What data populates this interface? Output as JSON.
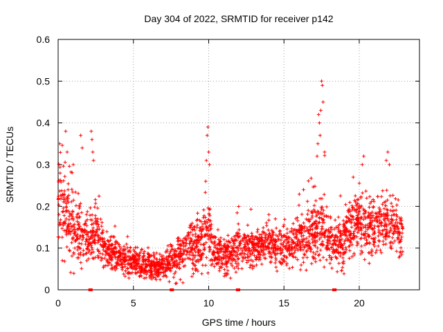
{
  "chart_data": {
    "type": "scatter",
    "title": "Day 304 of 2022, SRMTID for receiver p142",
    "xlabel": "GPS time / hours",
    "ylabel": "SRMTID / TECUs",
    "xlim": [
      0,
      24
    ],
    "ylim": [
      0,
      0.6
    ],
    "x_ticks": [
      0,
      5,
      10,
      15,
      20
    ],
    "y_ticks": [
      0,
      0.1,
      0.2,
      0.3,
      0.4,
      0.5,
      0.6
    ],
    "x_tick_labels": [
      "0",
      "5",
      "10",
      "15",
      "20"
    ],
    "y_tick_labels": [
      "0",
      "0.1",
      "0.2",
      "0.3",
      "0.4",
      "0.5",
      "0.6"
    ],
    "grid": true,
    "marker": "+",
    "color": "#ff0000",
    "profile": {
      "x": [
        0,
        0.3,
        0.7,
        1.0,
        1.5,
        2.0,
        2.5,
        3.0,
        3.5,
        4.0,
        4.5,
        5.0,
        5.5,
        6.0,
        6.5,
        7.0,
        7.5,
        8.0,
        8.5,
        9.0,
        9.5,
        10.0,
        10.5,
        11.0,
        11.5,
        12.0,
        12.5,
        13.0,
        13.5,
        14.0,
        14.5,
        15.0,
        15.5,
        16.0,
        16.5,
        17.0,
        17.5,
        18.0,
        18.5,
        19.0,
        19.5,
        20.0,
        20.5,
        21.0,
        21.5,
        22.0,
        22.5,
        22.9
      ],
      "y": [
        0.22,
        0.2,
        0.17,
        0.15,
        0.13,
        0.12,
        0.14,
        0.1,
        0.09,
        0.08,
        0.07,
        0.07,
        0.06,
        0.06,
        0.055,
        0.06,
        0.065,
        0.08,
        0.1,
        0.1,
        0.11,
        0.13,
        0.09,
        0.08,
        0.085,
        0.1,
        0.1,
        0.1,
        0.11,
        0.12,
        0.1,
        0.09,
        0.11,
        0.12,
        0.13,
        0.14,
        0.15,
        0.12,
        0.1,
        0.12,
        0.15,
        0.17,
        0.15,
        0.14,
        0.16,
        0.17,
        0.15,
        0.12
      ],
      "spread": [
        0.09,
        0.08,
        0.07,
        0.06,
        0.05,
        0.05,
        0.05,
        0.035,
        0.03,
        0.025,
        0.025,
        0.025,
        0.025,
        0.025,
        0.02,
        0.025,
        0.03,
        0.04,
        0.05,
        0.05,
        0.05,
        0.06,
        0.035,
        0.03,
        0.035,
        0.04,
        0.035,
        0.03,
        0.03,
        0.035,
        0.035,
        0.035,
        0.04,
        0.045,
        0.05,
        0.055,
        0.06,
        0.045,
        0.04,
        0.05,
        0.06,
        0.06,
        0.05,
        0.05,
        0.055,
        0.05,
        0.05,
        0.04
      ]
    },
    "peaks": [
      {
        "x": 0.1,
        "y": 0.35
      },
      {
        "x": 0.5,
        "y": 0.38
      },
      {
        "x": 0.6,
        "y": 0.33
      },
      {
        "x": 1.0,
        "y": 0.3
      },
      {
        "x": 1.5,
        "y": 0.37
      },
      {
        "x": 1.6,
        "y": 0.34
      },
      {
        "x": 2.2,
        "y": 0.38
      },
      {
        "x": 2.25,
        "y": 0.36
      },
      {
        "x": 2.3,
        "y": 0.33
      },
      {
        "x": 2.35,
        "y": 0.31
      },
      {
        "x": 9.95,
        "y": 0.39
      },
      {
        "x": 9.9,
        "y": 0.37
      },
      {
        "x": 10.0,
        "y": 0.33
      },
      {
        "x": 9.85,
        "y": 0.31
      },
      {
        "x": 10.05,
        "y": 0.3
      },
      {
        "x": 9.8,
        "y": 0.26
      },
      {
        "x": 17.5,
        "y": 0.5
      },
      {
        "x": 17.55,
        "y": 0.49
      },
      {
        "x": 17.6,
        "y": 0.45
      },
      {
        "x": 17.45,
        "y": 0.43
      },
      {
        "x": 17.3,
        "y": 0.42
      },
      {
        "x": 17.35,
        "y": 0.4
      },
      {
        "x": 17.4,
        "y": 0.37
      },
      {
        "x": 17.25,
        "y": 0.35
      },
      {
        "x": 17.7,
        "y": 0.33
      },
      {
        "x": 17.2,
        "y": 0.32
      },
      {
        "x": 20.3,
        "y": 0.32
      },
      {
        "x": 20.2,
        "y": 0.3
      },
      {
        "x": 21.9,
        "y": 0.33
      },
      {
        "x": 21.8,
        "y": 0.31
      },
      {
        "x": 22.0,
        "y": 0.3
      },
      {
        "x": 16.3,
        "y": 0.24
      },
      {
        "x": 19.6,
        "y": 0.27
      }
    ],
    "baseline_markers": [
      2.1,
      2.2,
      7.5,
      7.6,
      11.9,
      12.0,
      18.3,
      18.4
    ],
    "n_points": 2600
  }
}
